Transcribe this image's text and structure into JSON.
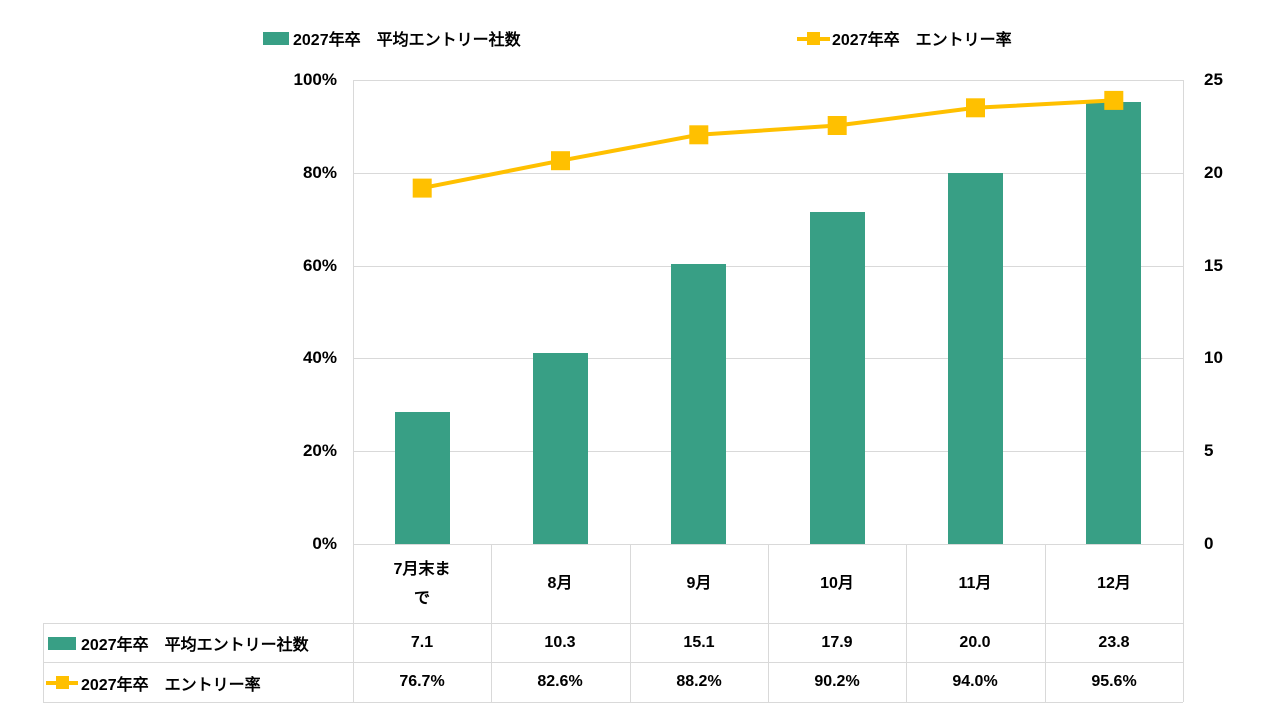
{
  "legend": {
    "bar_label": "2027年卒　平均エントリー社数",
    "line_label": "2027年卒　エントリー率"
  },
  "colors": {
    "bar": "#389f85",
    "line": "#ffc000",
    "grid": "#d9d9d9",
    "text": "#000000"
  },
  "chart_data": {
    "type": "bar",
    "subtype": "combo-bar-line",
    "title": "",
    "categories": [
      "7月末まで",
      "8月",
      "9月",
      "10月",
      "11月",
      "12月"
    ],
    "series": [
      {
        "name": "2027年卒　平均エントリー社数",
        "type": "bar",
        "axis": "right",
        "color": "#389f85",
        "values": [
          7.1,
          10.3,
          15.1,
          17.9,
          20.0,
          23.8
        ],
        "table_labels": [
          "7.1",
          "10.3",
          "15.1",
          "17.9",
          "20.0",
          "23.8"
        ]
      },
      {
        "name": "2027年卒　エントリー率",
        "type": "line",
        "axis": "left",
        "color": "#ffc000",
        "values": [
          76.7,
          82.6,
          88.2,
          90.2,
          94.0,
          95.6
        ],
        "table_labels": [
          "76.7%",
          "82.6%",
          "88.2%",
          "90.2%",
          "94.0%",
          "95.6%"
        ]
      }
    ],
    "left_axis": {
      "min": 0,
      "max": 100,
      "tick_step": 20,
      "tick_labels": [
        "0%",
        "20%",
        "40%",
        "60%",
        "80%",
        "100%"
      ]
    },
    "right_axis": {
      "min": 0,
      "max": 25,
      "tick_step": 5,
      "tick_labels": [
        "0",
        "5",
        "10",
        "15",
        "20",
        "25"
      ]
    },
    "grid": "horizontal",
    "legend_position": "top",
    "data_table": true
  }
}
